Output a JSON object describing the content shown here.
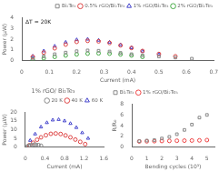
{
  "chart_data": [
    {
      "type": "scatter",
      "xlabel": "Current (mA)",
      "ylabel": "Power (μW)",
      "annotation": "ΔT = 20K",
      "xlim": [
        0,
        0.7
      ],
      "xticks": [
        0,
        0.1,
        0.2,
        0.3,
        0.4,
        0.5,
        0.6,
        0.7
      ],
      "ylim": [
        0,
        4
      ],
      "yticks": [
        0,
        1,
        2,
        3,
        4
      ],
      "grid": false,
      "legend": "upper right",
      "series": [
        {
          "name": "Bi₂Te₃",
          "color": "#888888",
          "marker": "square",
          "x": [
            0.04,
            0.08,
            0.12,
            0.16,
            0.2,
            0.24,
            0.28,
            0.32,
            0.36,
            0.4,
            0.44,
            0.5,
            0.56,
            0.62
          ],
          "values": [
            0.18,
            0.4,
            0.6,
            0.75,
            0.88,
            0.95,
            0.92,
            0.85,
            0.72,
            0.6,
            0.5,
            0.38,
            0.28,
            0.18
          ]
        },
        {
          "name": "0.5% rGO/Bi₂Te₃",
          "color": "#dd4444",
          "marker": "circle",
          "x": [
            0.04,
            0.08,
            0.12,
            0.16,
            0.2,
            0.24,
            0.28,
            0.32,
            0.36,
            0.4,
            0.44,
            0.5,
            0.56
          ],
          "values": [
            0.35,
            0.75,
            1.15,
            1.5,
            1.75,
            1.85,
            1.8,
            1.65,
            1.42,
            1.18,
            0.9,
            0.62,
            0.4
          ]
        },
        {
          "name": "1% rGO/Bi₂Te₃",
          "color": "#4444cc",
          "marker": "triangle",
          "x": [
            0.04,
            0.08,
            0.12,
            0.16,
            0.2,
            0.24,
            0.28,
            0.32,
            0.36,
            0.4,
            0.44,
            0.5
          ],
          "values": [
            0.42,
            0.9,
            1.35,
            1.72,
            1.95,
            2.0,
            1.9,
            1.72,
            1.48,
            1.2,
            0.88,
            0.58
          ]
        },
        {
          "name": "2% rGO/Bi₂Te₃",
          "color": "#44aa44",
          "marker": "circle",
          "x": [
            0.04,
            0.08,
            0.12,
            0.16,
            0.2,
            0.24,
            0.28,
            0.32,
            0.36,
            0.4,
            0.44
          ],
          "values": [
            0.1,
            0.22,
            0.35,
            0.48,
            0.58,
            0.65,
            0.68,
            0.65,
            0.58,
            0.48,
            0.35
          ]
        }
      ]
    },
    {
      "type": "scatter",
      "title": "1% rGO/ Bi₂Te₃",
      "xlabel": "Current (mA)",
      "ylabel": "Power (μW)",
      "xlim": [
        0,
        1.6
      ],
      "xticks": [
        0,
        0.4,
        0.8,
        1.2,
        1.6
      ],
      "ylim": [
        0,
        20
      ],
      "yticks": [
        0,
        5,
        10,
        15,
        20
      ],
      "grid": false,
      "legend": "upper right",
      "series": [
        {
          "name": "20 K",
          "color": "#888888",
          "marker": "circle",
          "x": [
            0.04,
            0.07,
            0.1,
            0.14,
            0.18,
            0.22,
            0.27,
            0.32
          ],
          "values": [
            0.3,
            0.65,
            0.95,
            1.2,
            1.35,
            1.3,
            1.1,
            0.78
          ]
        },
        {
          "name": "40 K",
          "color": "#dd4444",
          "marker": "circle",
          "x": [
            0.08,
            0.16,
            0.24,
            0.32,
            0.42,
            0.52,
            0.62,
            0.72,
            0.82,
            0.92,
            1.02,
            1.12,
            1.22
          ],
          "values": [
            1.0,
            2.5,
            4.2,
            5.6,
            6.8,
            7.6,
            7.8,
            7.5,
            6.7,
            5.6,
            4.3,
            3.0,
            1.7
          ]
        },
        {
          "name": "60 K",
          "color": "#4444cc",
          "marker": "triangle",
          "x": [
            0.1,
            0.2,
            0.32,
            0.44,
            0.56,
            0.68,
            0.8,
            0.92,
            1.04,
            1.16,
            1.28
          ],
          "values": [
            3.8,
            7.5,
            11.5,
            14.0,
            15.5,
            15.8,
            15.0,
            13.5,
            11.2,
            8.2,
            5.0
          ]
        }
      ]
    },
    {
      "type": "scatter",
      "xlabel": "Bending cycles (10³)",
      "ylabel": "R/R₀",
      "xlim": [
        0,
        5.5
      ],
      "xticks": [
        0,
        1,
        2,
        3,
        4,
        5
      ],
      "ylim": [
        0,
        8
      ],
      "yticks": [
        0,
        2,
        4,
        6,
        8
      ],
      "grid": false,
      "legend": "upper left",
      "series": [
        {
          "name": "Bi₂Te₃",
          "color": "#888888",
          "marker": "square",
          "x": [
            0.5,
            1.0,
            1.5,
            2.0,
            2.5,
            3.0,
            3.5,
            4.0,
            4.5,
            5.0
          ],
          "values": [
            1.1,
            1.2,
            1.3,
            1.6,
            1.9,
            2.4,
            3.2,
            4.2,
            5.5,
            6.0
          ]
        },
        {
          "name": "1% rGO/Bi₂Te₃",
          "color": "#ee4444",
          "marker": "circle",
          "x": [
            0.5,
            1.0,
            1.5,
            2.0,
            2.5,
            3.0,
            3.5,
            4.0,
            4.5,
            5.0
          ],
          "values": [
            1.05,
            1.08,
            1.1,
            1.13,
            1.15,
            1.18,
            1.2,
            1.22,
            1.25,
            1.3
          ]
        }
      ]
    }
  ]
}
